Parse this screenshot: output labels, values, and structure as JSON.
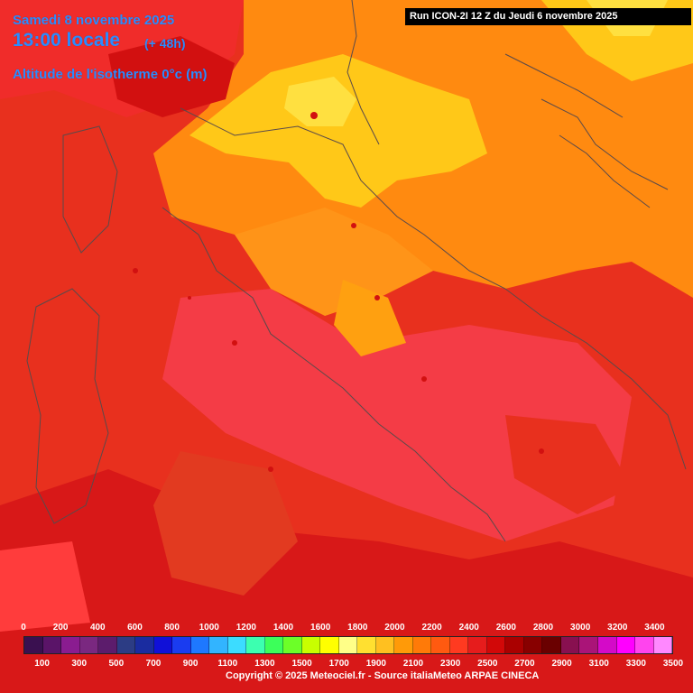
{
  "header": {
    "date": "Samedi 8 novembre 2025",
    "time": "13:00 locale",
    "offset": "(+ 48h)",
    "parameter": "Altitude de l'isotherme 0°c (m)",
    "run": "Run ICON-2I 12 Z du Jeudi 6 novembre 2025"
  },
  "legend": {
    "top_labels": [
      "0",
      "200",
      "400",
      "600",
      "800",
      "1000",
      "1200",
      "1400",
      "1600",
      "1800",
      "2000",
      "2200",
      "2400",
      "2600",
      "2800",
      "3000",
      "3200",
      "3400"
    ],
    "bottom_labels": [
      "100",
      "300",
      "500",
      "700",
      "900",
      "1100",
      "1300",
      "1500",
      "1700",
      "1900",
      "2100",
      "2300",
      "2500",
      "2700",
      "2900",
      "3100",
      "3300",
      "3500"
    ],
    "colors": [
      "#3a1050",
      "#5a1468",
      "#8a1c90",
      "#7a2880",
      "#5c1c6c",
      "#2c3c84",
      "#1a2ca0",
      "#1010d8",
      "#1a3cf0",
      "#1e78ff",
      "#32b4ff",
      "#3cdcff",
      "#3cffb0",
      "#3cff5a",
      "#6cff28",
      "#c8ff00",
      "#ffff00",
      "#ffff88",
      "#ffe030",
      "#ffc020",
      "#ff9a08",
      "#ff7a08",
      "#ff5a10",
      "#ff3a20",
      "#e61c1c",
      "#d20808",
      "#aa0000",
      "#880000",
      "#6a0000",
      "#881050",
      "#aa1478",
      "#d40ac8",
      "#ff00ff",
      "#ff44ee",
      "#ff88ff"
    ],
    "copyright": "Copyright © 2025 Meteociel.fr - Source italiaMeteo ARPAE CINECA"
  },
  "map_colors": {
    "base_red": "#e8301e",
    "deep_red": "#d21010",
    "orange": "#ff8a10",
    "light_orange": "#ffa010",
    "yellow": "#ffc818",
    "bright_yellow": "#ffe040",
    "pink_red": "#f43c46",
    "border": "#5a4a4a"
  }
}
